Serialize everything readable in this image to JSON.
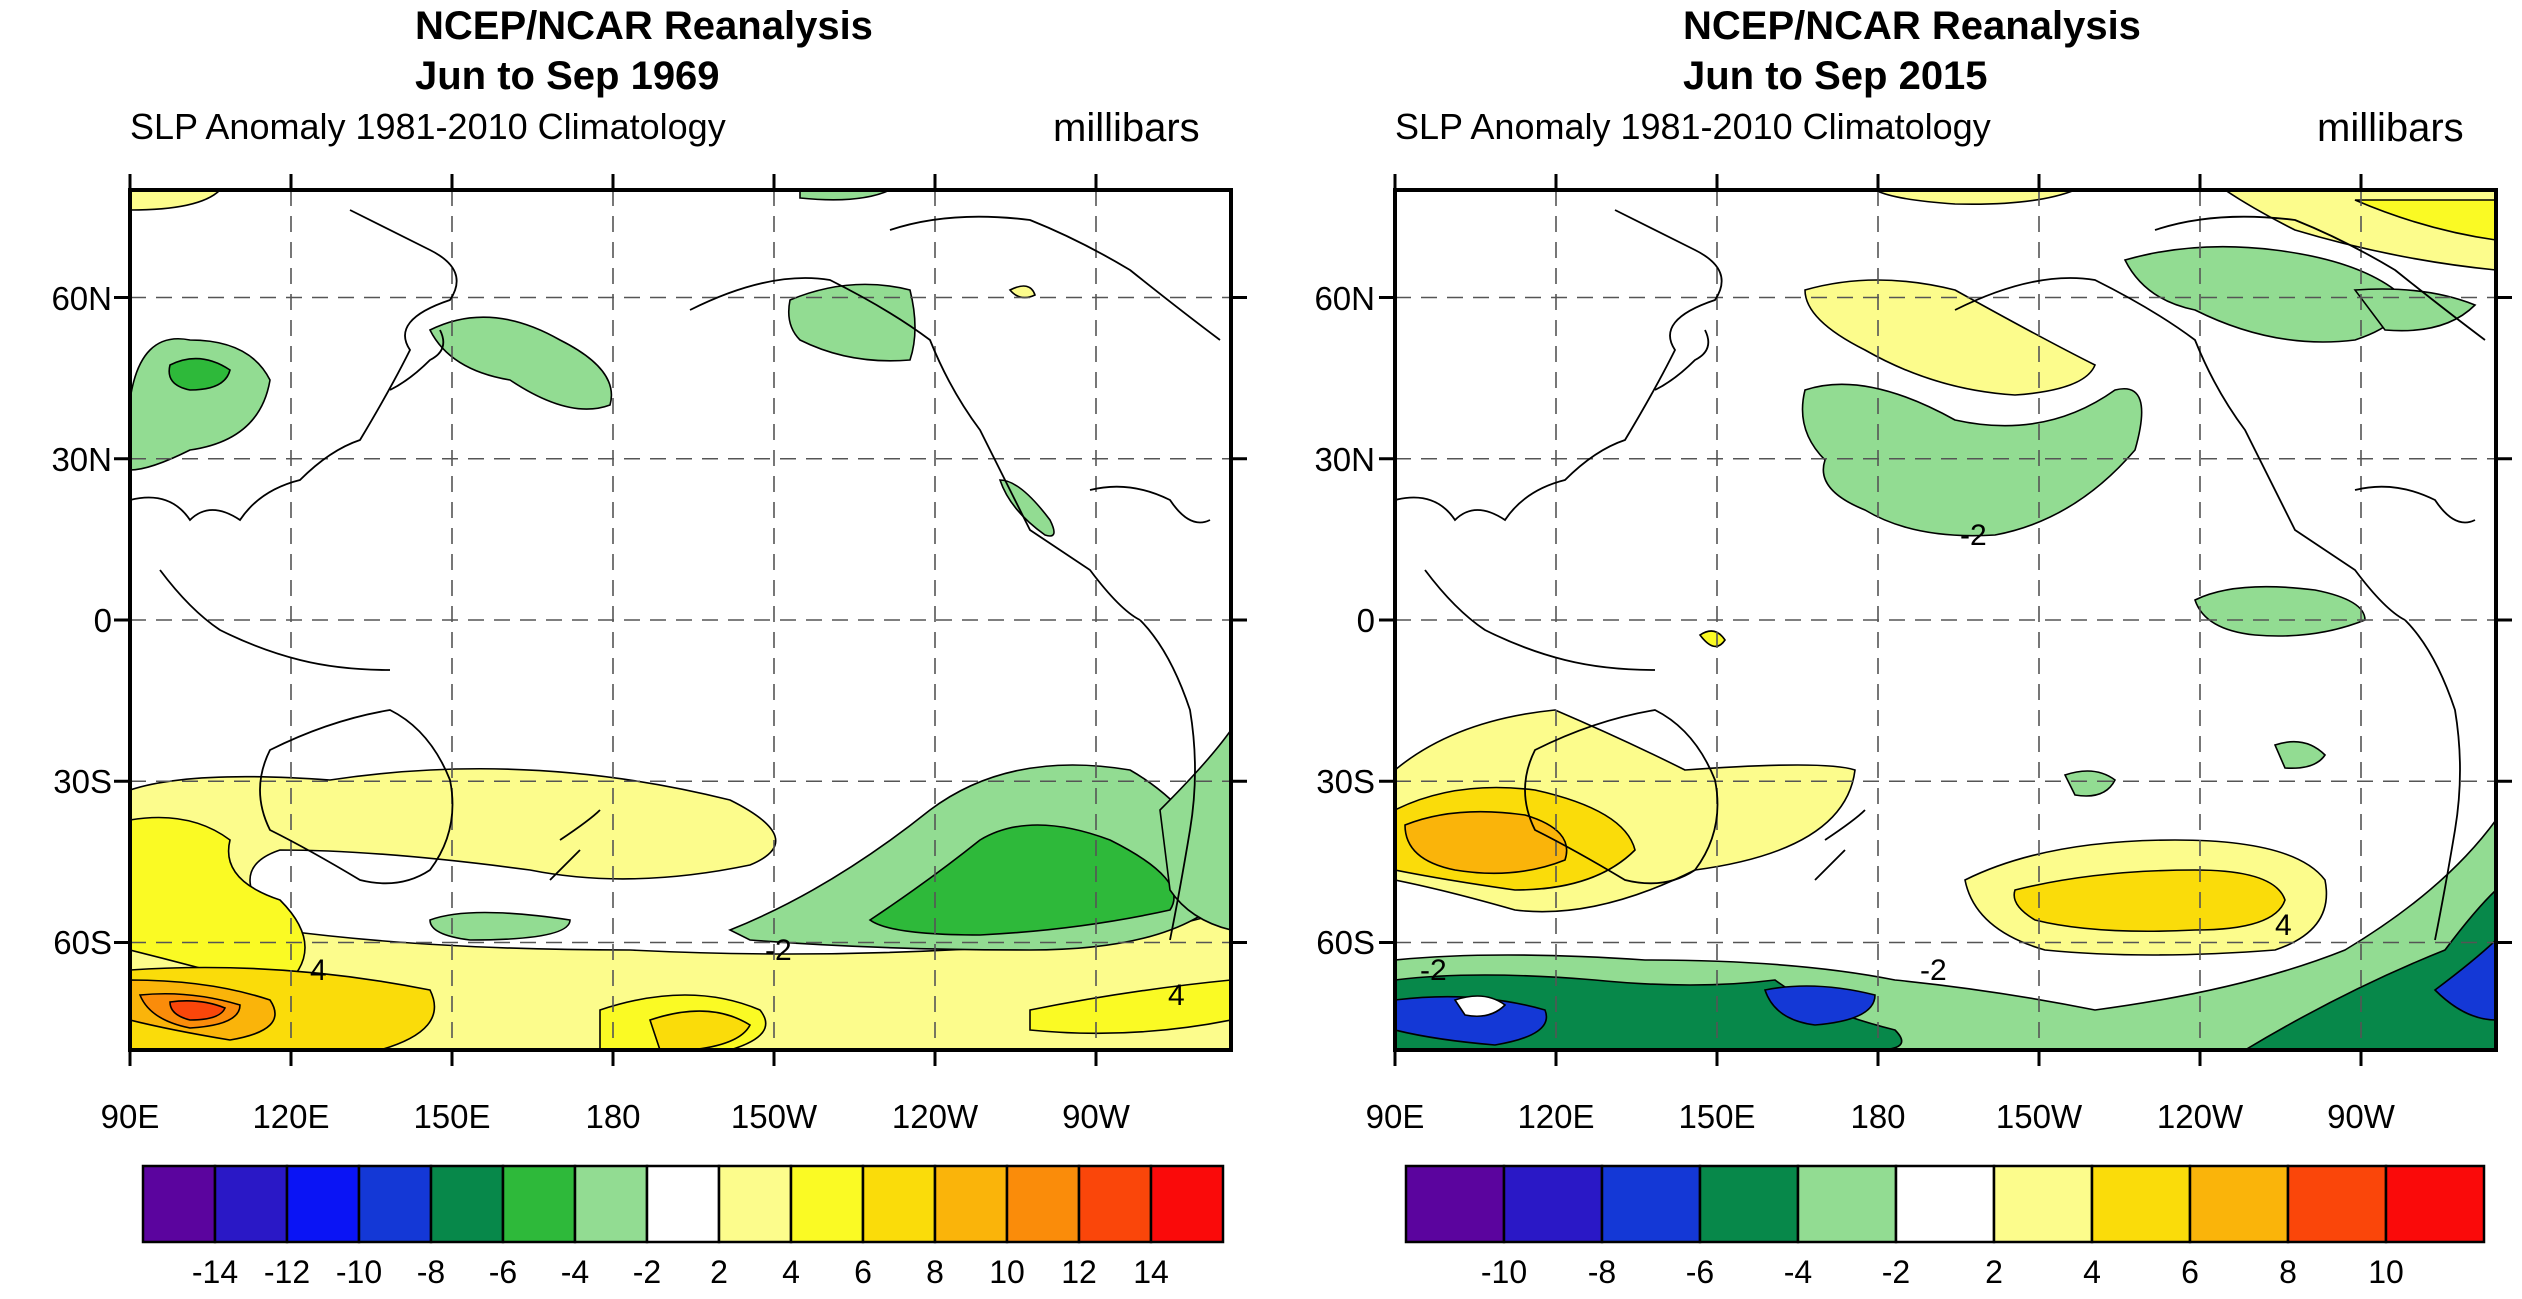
{
  "colors": {
    "purple": "#5b049e",
    "indigo": "#2a18c6",
    "blue": "#0a14f5",
    "royal": "#1438d6",
    "darkgreen": "#07884a",
    "green": "#2eb93a",
    "lightgreen": "#92dc92",
    "white": "#ffffff",
    "paleyellow": "#fcfc8c",
    "yellow": "#fafa24",
    "gold": "#fadc0a",
    "orange": "#fab40a",
    "darkorange": "#fa8c0a",
    "redorange": "#fa460a",
    "red": "#fa0a0a"
  },
  "panels": [
    {
      "title_line1": "NCEP/NCAR Reanalysis",
      "title_line2": "Jun to Sep 1969",
      "subtitle_left": "SLP Anomaly  1981-2010 Climatology",
      "subtitle_right": "millibars",
      "lat_ticks": [
        "60N",
        "30N",
        "0",
        "30S",
        "60S"
      ],
      "lon_ticks": [
        "90E",
        "120E",
        "150E",
        "180",
        "150W",
        "120W",
        "90W"
      ],
      "contour_labels": [
        "-2",
        "4",
        "4"
      ],
      "colorbar_labels": [
        "-14",
        "-12",
        "-10",
        "-8",
        "-6",
        "-4",
        "-2",
        "2",
        "4",
        "6",
        "8",
        "10",
        "12",
        "14"
      ]
    },
    {
      "title_line1": "NCEP/NCAR Reanalysis",
      "title_line2": "Jun to Sep 2015",
      "subtitle_left": "SLP Anomaly  1981-2010 Climatology",
      "subtitle_right": "millibars",
      "lat_ticks": [
        "60N",
        "30N",
        "0",
        "30S",
        "60S"
      ],
      "lon_ticks": [
        "90E",
        "120E",
        "150E",
        "180",
        "150W",
        "120W",
        "90W"
      ],
      "contour_labels": [
        "-2",
        "-2",
        "-2",
        "4"
      ],
      "colorbar_labels": [
        "-10",
        "-8",
        "-6",
        "-4",
        "-2",
        "2",
        "4",
        "6",
        "8",
        "10"
      ]
    }
  ]
}
